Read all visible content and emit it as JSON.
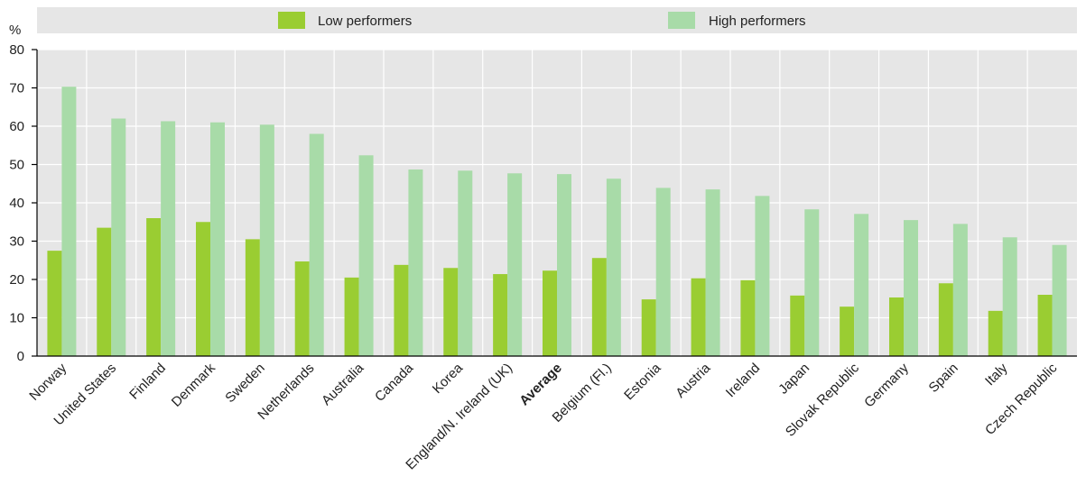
{
  "chart_data": {
    "type": "bar",
    "y_unit_label": "%",
    "ylim": [
      0,
      80
    ],
    "yticks": [
      0,
      10,
      20,
      30,
      40,
      50,
      60,
      70,
      80
    ],
    "grid": true,
    "legend_position": "top",
    "highlight_category": "Average",
    "categories": [
      "Norway",
      "United States",
      "Finland",
      "Denmark",
      "Sweden",
      "Netherlands",
      "Australia",
      "Canada",
      "Korea",
      "England/N. Ireland (UK)",
      "Average",
      "Belgium (Fl.)",
      "Estonia",
      "Austria",
      "Ireland",
      "Japan",
      "Slovak Republic",
      "Germany",
      "Spain",
      "Italy",
      "Czech Republic"
    ],
    "series": [
      {
        "name": "Low performers",
        "color": "#9acd32",
        "values": [
          27.5,
          33.5,
          36,
          35,
          30.5,
          24.7,
          20.5,
          23.8,
          23,
          21.4,
          22.3,
          25.6,
          14.8,
          20.3,
          19.8,
          15.8,
          12.9,
          15.3,
          19,
          11.8,
          16
        ]
      },
      {
        "name": "High performers",
        "color": "#a8dba8",
        "values": [
          70.3,
          62,
          61.3,
          61,
          60.4,
          58,
          52.4,
          48.7,
          48.4,
          47.7,
          47.5,
          46.3,
          43.9,
          43.5,
          41.8,
          38.3,
          37.1,
          35.5,
          34.5,
          31,
          29
        ]
      }
    ]
  }
}
